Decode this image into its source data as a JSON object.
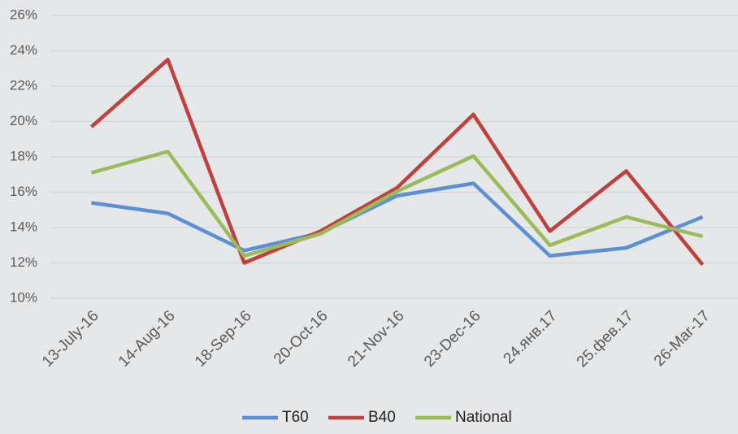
{
  "chart_data": {
    "type": "line",
    "categories": [
      "13-July-16",
      "14-Aug-16",
      "18-Sep-16",
      "20-Oct-16",
      "21-Nov-16",
      "23-Dec-16",
      "24.янв.17",
      "25.фев.17",
      "26-Mar-17"
    ],
    "series": [
      {
        "name": "T60",
        "color": "#5b8fd6",
        "values": [
          15.4,
          14.8,
          12.7,
          13.7,
          15.8,
          16.5,
          12.4,
          12.85,
          14.6
        ]
      },
      {
        "name": "B40",
        "color": "#c0403e",
        "values": [
          19.7,
          23.5,
          12.0,
          13.8,
          16.25,
          20.4,
          13.8,
          17.2,
          11.9
        ]
      },
      {
        "name": "National",
        "color": "#9bbb59",
        "values": [
          17.1,
          18.3,
          12.4,
          13.65,
          16.05,
          18.05,
          13.0,
          14.6,
          13.5
        ]
      }
    ],
    "ylim": [
      10,
      26
    ],
    "yticks": [
      {
        "value": 10,
        "label": "10%"
      },
      {
        "value": 12,
        "label": "12%"
      },
      {
        "value": 14,
        "label": "14%"
      },
      {
        "value": 16,
        "label": "16%"
      },
      {
        "value": 18,
        "label": "18%"
      },
      {
        "value": 20,
        "label": "20%"
      },
      {
        "value": 22,
        "label": "22%"
      },
      {
        "value": 24,
        "label": "24%"
      },
      {
        "value": 26,
        "label": "26%"
      }
    ],
    "grid": true,
    "legend": "bottom"
  }
}
